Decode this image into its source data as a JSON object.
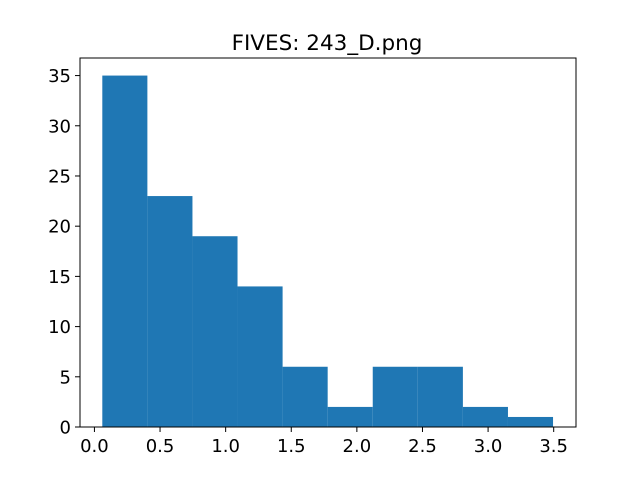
{
  "chart_data": {
    "type": "bar",
    "subtype": "histogram",
    "title": "FIVES: 243_D.png",
    "xlabel": "",
    "ylabel": "",
    "bin_edges": [
      0.06,
      0.4035,
      0.747,
      1.0905,
      1.434,
      1.7775,
      2.121,
      2.4645,
      2.808,
      3.1515,
      3.495
    ],
    "values": [
      35,
      23,
      19,
      14,
      6,
      2,
      6,
      6,
      2,
      1
    ],
    "xlim": [
      -0.11,
      3.67
    ],
    "ylim": [
      0,
      36.75
    ],
    "xticks": [
      0.0,
      0.5,
      1.0,
      1.5,
      2.0,
      2.5,
      3.0,
      3.5
    ],
    "xtick_labels": [
      "0.0",
      "0.5",
      "1.0",
      "1.5",
      "2.0",
      "2.5",
      "3.0",
      "3.5"
    ],
    "yticks": [
      0,
      5,
      10,
      15,
      20,
      25,
      30,
      35
    ],
    "ytick_labels": [
      "0",
      "5",
      "10",
      "15",
      "20",
      "25",
      "30",
      "35"
    ],
    "bar_color": "#1f77b4",
    "grid": false,
    "legend": "none"
  }
}
